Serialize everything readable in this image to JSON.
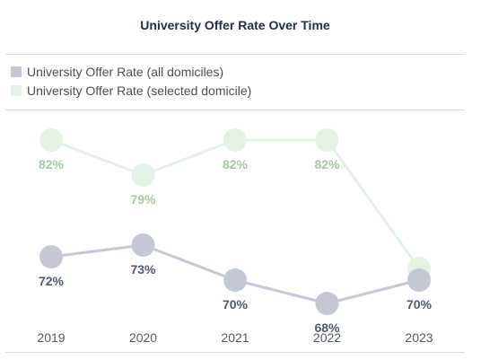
{
  "chart_data": {
    "type": "line",
    "title": "University Offer Rate Over Time",
    "xlabel": "",
    "ylabel": "",
    "categories": [
      "2019",
      "2020",
      "2021",
      "2022",
      "2023"
    ],
    "legend_position": "top-left",
    "grid": false,
    "series": [
      {
        "name": "University Offer Rate (all domiciles)",
        "color": "#c3c8d4",
        "label_color": "#4f5b70",
        "values": [
          72,
          73,
          70,
          68,
          70
        ],
        "labels": [
          "72%",
          "73%",
          "70%",
          "68%",
          "70%"
        ]
      },
      {
        "name": "University Offer Rate (selected domicile)",
        "color": "#e6f1e6",
        "label_color": "#a7c8a5",
        "values": [
          82,
          79,
          82,
          82,
          71
        ],
        "labels": [
          "82%",
          "79%",
          "82%",
          "82%",
          ""
        ]
      }
    ]
  }
}
